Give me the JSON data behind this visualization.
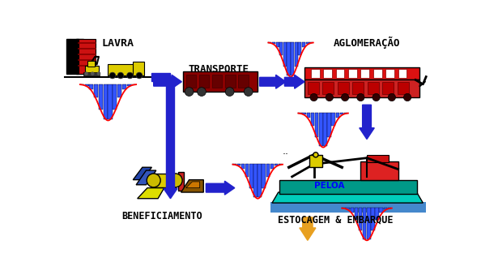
{
  "bg_color": "#ffffff",
  "labels": {
    "lavra": "LAVRA",
    "transporte": "TRANSPORTE",
    "aglomeracao": "AGLOMERAÇÃO",
    "beneficiamento": "BENEFICIAMENTO",
    "estocagem": "ESTOCAGEM & EMBARQUE",
    "peloa": "PELOA"
  },
  "blue": "#2222cc",
  "orange": "#e8a020",
  "hist_bar": "#3355ff",
  "hist_curve": "#ff0000",
  "dark_red": "#880011",
  "bright_red": "#dd1111"
}
